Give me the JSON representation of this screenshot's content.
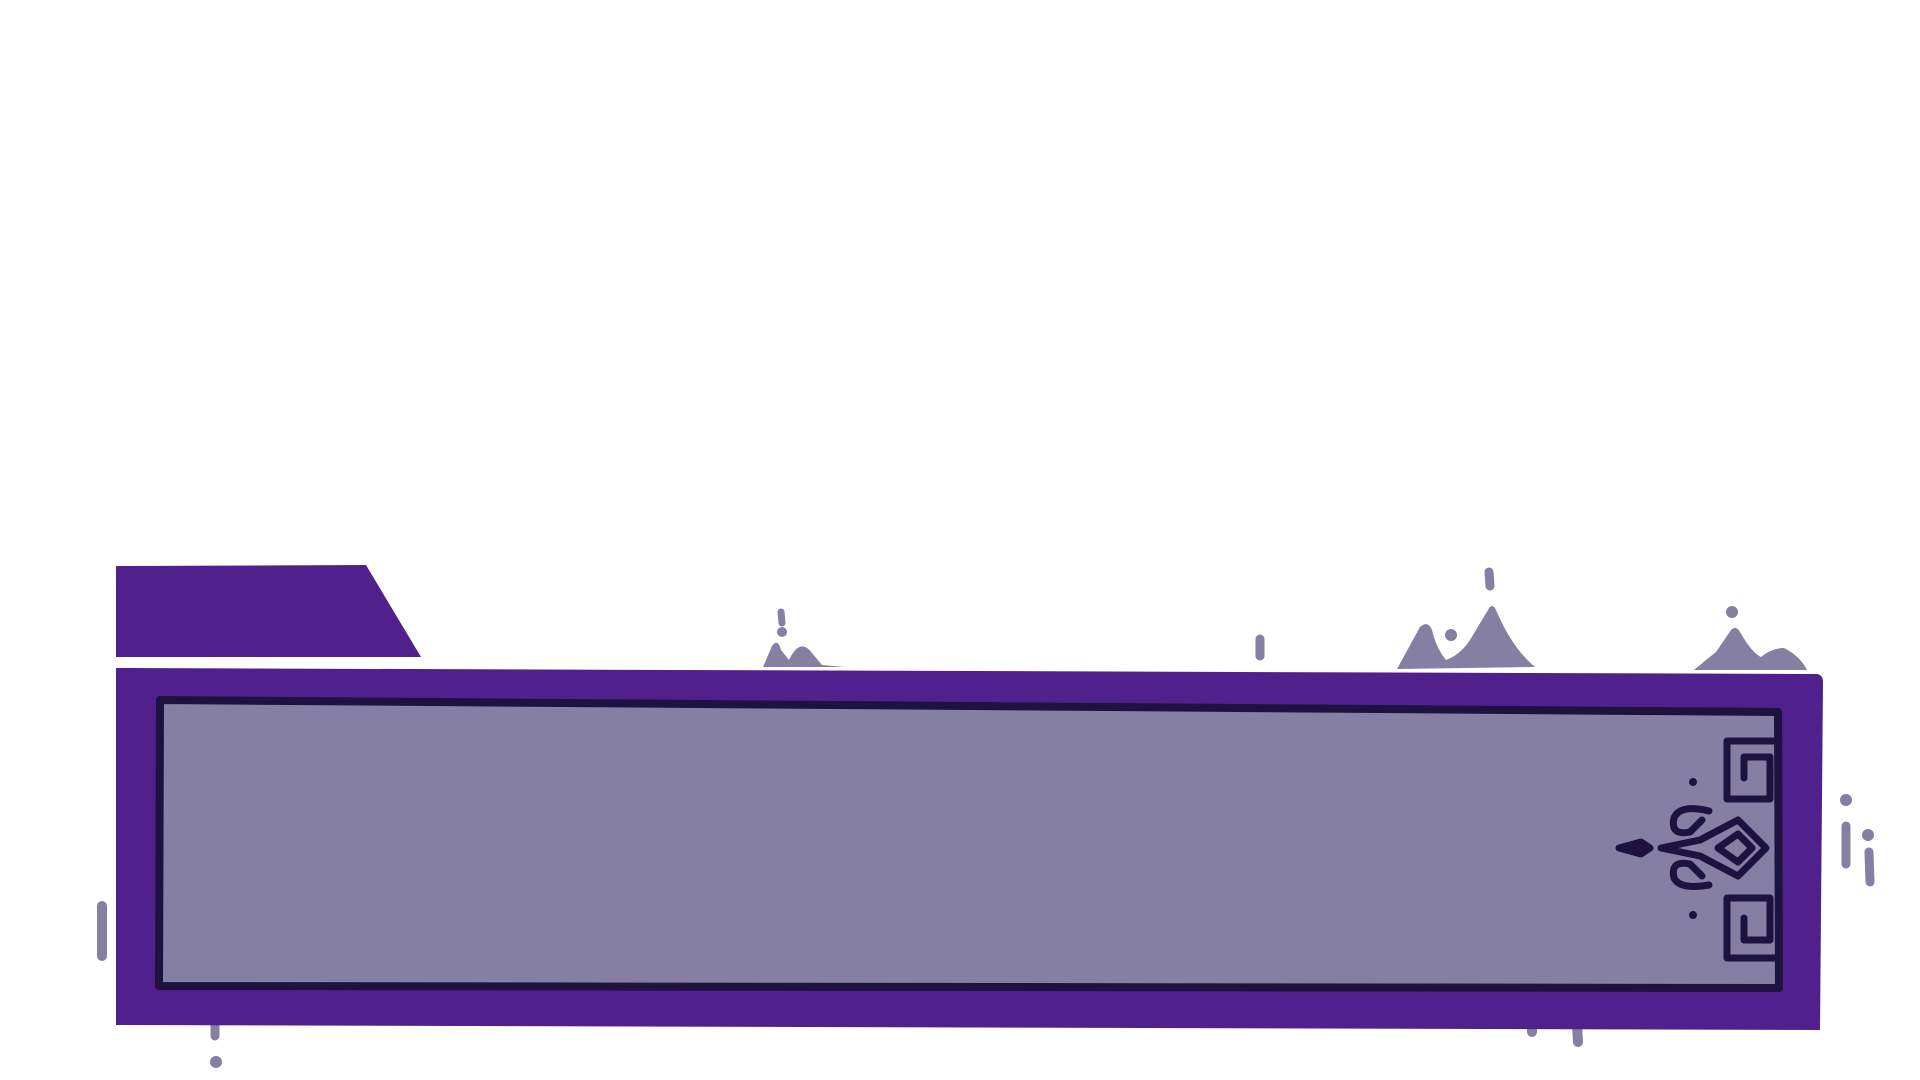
{
  "colors": {
    "frame_purple": "#50218c",
    "panel_fill": "#857fa3",
    "border_dark": "#1d1240",
    "drip_light": "#857fa3"
  },
  "dialogue": {
    "speaker": "",
    "text": ""
  },
  "icons": {
    "ornament": "fleur-ornament-icon"
  }
}
